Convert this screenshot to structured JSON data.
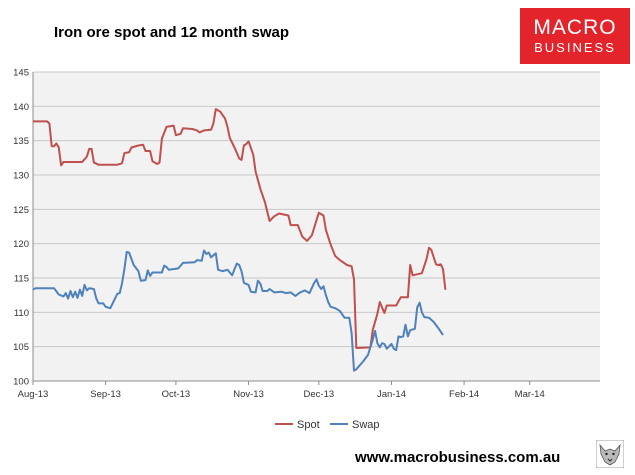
{
  "header": {
    "title": "Iron ore spot and 12 month swap"
  },
  "logo": {
    "line1": "MACRO",
    "line2": "BUSINESS",
    "color": "#e3242b"
  },
  "footer": {
    "url": "www.macrobusiness.com.au",
    "icon": "wolf-icon"
  },
  "chart_data": {
    "type": "line",
    "title": "Iron ore spot and 12 month swap",
    "xlabel": "",
    "ylabel": "",
    "ylim": [
      100,
      145
    ],
    "yticks": [
      100,
      105,
      110,
      115,
      120,
      125,
      130,
      135,
      140,
      145
    ],
    "xlim": [
      "2013-08-01",
      "2014-03-31"
    ],
    "xticks": [
      {
        "date": "2013-08-01",
        "label": "Aug-13"
      },
      {
        "date": "2013-09-01",
        "label": "Sep-13"
      },
      {
        "date": "2013-10-01",
        "label": "Oct-13"
      },
      {
        "date": "2013-11-01",
        "label": "Nov-13"
      },
      {
        "date": "2013-12-01",
        "label": "Dec-13"
      },
      {
        "date": "2014-01-01",
        "label": "Jan-14"
      },
      {
        "date": "2014-02-01",
        "label": "Feb-14"
      },
      {
        "date": "2014-03-01",
        "label": "Mar-14"
      }
    ],
    "grid": "horizontal",
    "plot_background": "#f2f2f2",
    "legend": "bottom-center",
    "series": [
      {
        "name": "Spot",
        "color": "#c0504d",
        "points": [
          [
            "2013-08-01",
            137.8
          ],
          [
            "2013-08-07",
            137.8
          ],
          [
            "2013-08-08",
            137.5
          ],
          [
            "2013-08-09",
            134.2
          ],
          [
            "2013-08-10",
            134.2
          ],
          [
            "2013-08-11",
            134.6
          ],
          [
            "2013-08-12",
            134.0
          ],
          [
            "2013-08-13",
            131.4
          ],
          [
            "2013-08-14",
            131.9
          ],
          [
            "2013-08-22",
            131.9
          ],
          [
            "2013-08-24",
            132.7
          ],
          [
            "2013-08-25",
            133.8
          ],
          [
            "2013-08-26",
            133.8
          ],
          [
            "2013-08-27",
            131.8
          ],
          [
            "2013-08-29",
            131.5
          ],
          [
            "2013-09-06",
            131.5
          ],
          [
            "2013-09-08",
            131.7
          ],
          [
            "2013-09-09",
            133.2
          ],
          [
            "2013-09-11",
            133.3
          ],
          [
            "2013-09-12",
            134.0
          ],
          [
            "2013-09-15",
            134.3
          ],
          [
            "2013-09-17",
            134.4
          ],
          [
            "2013-09-18",
            133.5
          ],
          [
            "2013-09-20",
            133.5
          ],
          [
            "2013-09-21",
            132.0
          ],
          [
            "2013-09-23",
            131.6
          ],
          [
            "2013-09-24",
            131.8
          ],
          [
            "2013-09-25",
            135.3
          ],
          [
            "2013-09-27",
            137.0
          ],
          [
            "2013-09-30",
            137.2
          ],
          [
            "2013-10-01",
            135.8
          ],
          [
            "2013-10-03",
            136.0
          ],
          [
            "2013-10-04",
            136.8
          ],
          [
            "2013-10-08",
            136.7
          ],
          [
            "2013-10-10",
            136.5
          ],
          [
            "2013-10-11",
            136.2
          ],
          [
            "2013-10-13",
            136.5
          ],
          [
            "2013-10-16",
            136.6
          ],
          [
            "2013-10-17",
            137.5
          ],
          [
            "2013-10-18",
            139.6
          ],
          [
            "2013-10-20",
            139.2
          ],
          [
            "2013-10-22",
            138.2
          ],
          [
            "2013-10-23",
            137.0
          ],
          [
            "2013-10-24",
            135.4
          ],
          [
            "2013-10-26",
            134.0
          ],
          [
            "2013-10-28",
            132.4
          ],
          [
            "2013-10-29",
            132.2
          ],
          [
            "2013-10-30",
            134.3
          ],
          [
            "2013-10-31",
            134.5
          ],
          [
            "2013-11-01",
            134.9
          ],
          [
            "2013-11-03",
            133.0
          ],
          [
            "2013-11-04",
            130.5
          ],
          [
            "2013-11-06",
            128.0
          ],
          [
            "2013-11-08",
            126.0
          ],
          [
            "2013-11-10",
            123.3
          ],
          [
            "2013-11-12",
            124.0
          ],
          [
            "2013-11-14",
            124.4
          ],
          [
            "2013-11-18",
            124.1
          ],
          [
            "2013-11-19",
            122.7
          ],
          [
            "2013-11-22",
            122.7
          ],
          [
            "2013-11-24",
            121.0
          ],
          [
            "2013-11-26",
            120.4
          ],
          [
            "2013-11-28",
            121.2
          ],
          [
            "2013-12-01",
            124.5
          ],
          [
            "2013-12-03",
            124.1
          ],
          [
            "2013-12-04",
            122.0
          ],
          [
            "2013-12-06",
            119.9
          ],
          [
            "2013-12-08",
            118.2
          ],
          [
            "2013-12-10",
            117.6
          ],
          [
            "2013-12-13",
            116.9
          ],
          [
            "2013-12-15",
            116.7
          ],
          [
            "2013-12-16",
            114.8
          ],
          [
            "2013-12-17",
            104.8
          ],
          [
            "2013-12-23",
            104.9
          ],
          [
            "2013-12-24",
            107.4
          ],
          [
            "2013-12-26",
            109.8
          ],
          [
            "2013-12-27",
            111.5
          ],
          [
            "2013-12-29",
            109.9
          ],
          [
            "2013-12-30",
            111.0
          ],
          [
            "2014-01-03",
            111.0
          ],
          [
            "2014-01-04",
            111.6
          ],
          [
            "2014-01-05",
            112.2
          ],
          [
            "2014-01-08",
            112.2
          ],
          [
            "2014-01-09",
            116.9
          ],
          [
            "2014-01-10",
            115.4
          ],
          [
            "2014-01-14",
            115.7
          ],
          [
            "2014-01-16",
            117.8
          ],
          [
            "2014-01-17",
            119.4
          ],
          [
            "2014-01-18",
            119.1
          ],
          [
            "2014-01-20",
            117.0
          ],
          [
            "2014-01-21",
            116.9
          ],
          [
            "2014-01-22",
            117.0
          ],
          [
            "2014-01-23",
            116.3
          ],
          [
            "2014-01-24",
            113.3
          ]
        ]
      },
      {
        "name": "Swap",
        "color": "#4f81bd",
        "points": [
          [
            "2013-08-01",
            113.3
          ],
          [
            "2013-08-02",
            113.5
          ],
          [
            "2013-08-10",
            113.5
          ],
          [
            "2013-08-12",
            112.6
          ],
          [
            "2013-08-14",
            112.3
          ],
          [
            "2013-08-15",
            112.8
          ],
          [
            "2013-08-16",
            112.0
          ],
          [
            "2013-08-17",
            113.1
          ],
          [
            "2013-08-18",
            112.2
          ],
          [
            "2013-08-19",
            113.0
          ],
          [
            "2013-08-20",
            112.1
          ],
          [
            "2013-08-21",
            113.3
          ],
          [
            "2013-08-22",
            112.4
          ],
          [
            "2013-08-23",
            114.0
          ],
          [
            "2013-08-24",
            113.2
          ],
          [
            "2013-08-25",
            113.5
          ],
          [
            "2013-08-27",
            113.4
          ],
          [
            "2013-08-28",
            112.0
          ],
          [
            "2013-08-29",
            111.3
          ],
          [
            "2013-08-31",
            111.3
          ],
          [
            "2013-09-01",
            110.8
          ],
          [
            "2013-09-03",
            110.6
          ],
          [
            "2013-09-05",
            112.0
          ],
          [
            "2013-09-06",
            112.7
          ],
          [
            "2013-09-07",
            112.8
          ],
          [
            "2013-09-08",
            114.2
          ],
          [
            "2013-09-09",
            116.3
          ],
          [
            "2013-09-10",
            118.8
          ],
          [
            "2013-09-11",
            118.7
          ],
          [
            "2013-09-13",
            116.9
          ],
          [
            "2013-09-15",
            116.0
          ],
          [
            "2013-09-16",
            114.6
          ],
          [
            "2013-09-18",
            114.7
          ],
          [
            "2013-09-19",
            116.1
          ],
          [
            "2013-09-20",
            115.3
          ],
          [
            "2013-09-21",
            115.8
          ],
          [
            "2013-09-25",
            115.8
          ],
          [
            "2013-09-26",
            116.8
          ],
          [
            "2013-09-27",
            116.6
          ],
          [
            "2013-09-28",
            116.2
          ],
          [
            "2013-10-02",
            116.4
          ],
          [
            "2013-10-04",
            117.2
          ],
          [
            "2013-10-09",
            117.3
          ],
          [
            "2013-10-10",
            117.6
          ],
          [
            "2013-10-12",
            117.5
          ],
          [
            "2013-10-13",
            119.0
          ],
          [
            "2013-10-14",
            118.5
          ],
          [
            "2013-10-15",
            118.7
          ],
          [
            "2013-10-16",
            118.0
          ],
          [
            "2013-10-17",
            118.3
          ],
          [
            "2013-10-18",
            118.6
          ],
          [
            "2013-10-19",
            116.2
          ],
          [
            "2013-10-21",
            116.0
          ],
          [
            "2013-10-23",
            116.2
          ],
          [
            "2013-10-24",
            115.8
          ],
          [
            "2013-10-25",
            115.4
          ],
          [
            "2013-10-26",
            116.3
          ],
          [
            "2013-10-27",
            117.1
          ],
          [
            "2013-10-28",
            116.9
          ],
          [
            "2013-10-29",
            116.0
          ],
          [
            "2013-10-30",
            114.3
          ],
          [
            "2013-11-01",
            114.0
          ],
          [
            "2013-11-02",
            113.0
          ],
          [
            "2013-11-04",
            112.9
          ],
          [
            "2013-11-05",
            114.6
          ],
          [
            "2013-11-06",
            114.2
          ],
          [
            "2013-11-07",
            113.1
          ],
          [
            "2013-11-09",
            113.1
          ],
          [
            "2013-11-10",
            113.4
          ],
          [
            "2013-11-12",
            112.9
          ],
          [
            "2013-11-15",
            113.0
          ],
          [
            "2013-11-17",
            112.8
          ],
          [
            "2013-11-19",
            112.9
          ],
          [
            "2013-11-21",
            112.4
          ],
          [
            "2013-11-23",
            112.9
          ],
          [
            "2013-11-25",
            113.2
          ],
          [
            "2013-11-27",
            112.8
          ],
          [
            "2013-11-29",
            114.3
          ],
          [
            "2013-11-30",
            114.8
          ],
          [
            "2013-12-01",
            113.9
          ],
          [
            "2013-12-02",
            113.4
          ],
          [
            "2013-12-03",
            113.8
          ],
          [
            "2013-12-04",
            112.5
          ],
          [
            "2013-12-05",
            111.5
          ],
          [
            "2013-12-06",
            110.8
          ],
          [
            "2013-12-08",
            110.6
          ],
          [
            "2013-12-10",
            110.2
          ],
          [
            "2013-12-12",
            109.2
          ],
          [
            "2013-12-14",
            109.2
          ],
          [
            "2013-12-15",
            107.0
          ],
          [
            "2013-12-16",
            101.5
          ],
          [
            "2013-12-17",
            101.7
          ],
          [
            "2013-12-20",
            102.9
          ],
          [
            "2013-12-22",
            103.8
          ],
          [
            "2013-12-24",
            106.0
          ],
          [
            "2013-12-25",
            107.3
          ],
          [
            "2013-12-26",
            105.5
          ],
          [
            "2013-12-27",
            104.9
          ],
          [
            "2013-12-28",
            105.5
          ],
          [
            "2013-12-29",
            105.4
          ],
          [
            "2013-12-30",
            104.7
          ],
          [
            "2014-01-01",
            105.4
          ],
          [
            "2014-01-02",
            104.7
          ],
          [
            "2014-01-03",
            104.5
          ],
          [
            "2014-01-04",
            106.5
          ],
          [
            "2014-01-05",
            106.4
          ],
          [
            "2014-01-06",
            106.5
          ],
          [
            "2014-01-07",
            108.2
          ],
          [
            "2014-01-08",
            106.5
          ],
          [
            "2014-01-09",
            107.4
          ],
          [
            "2014-01-11",
            107.6
          ],
          [
            "2014-01-12",
            110.7
          ],
          [
            "2014-01-13",
            111.4
          ],
          [
            "2014-01-14",
            110.0
          ],
          [
            "2014-01-15",
            109.3
          ],
          [
            "2014-01-17",
            109.2
          ],
          [
            "2014-01-19",
            108.6
          ],
          [
            "2014-01-21",
            107.7
          ],
          [
            "2014-01-23",
            106.7
          ]
        ]
      }
    ]
  }
}
